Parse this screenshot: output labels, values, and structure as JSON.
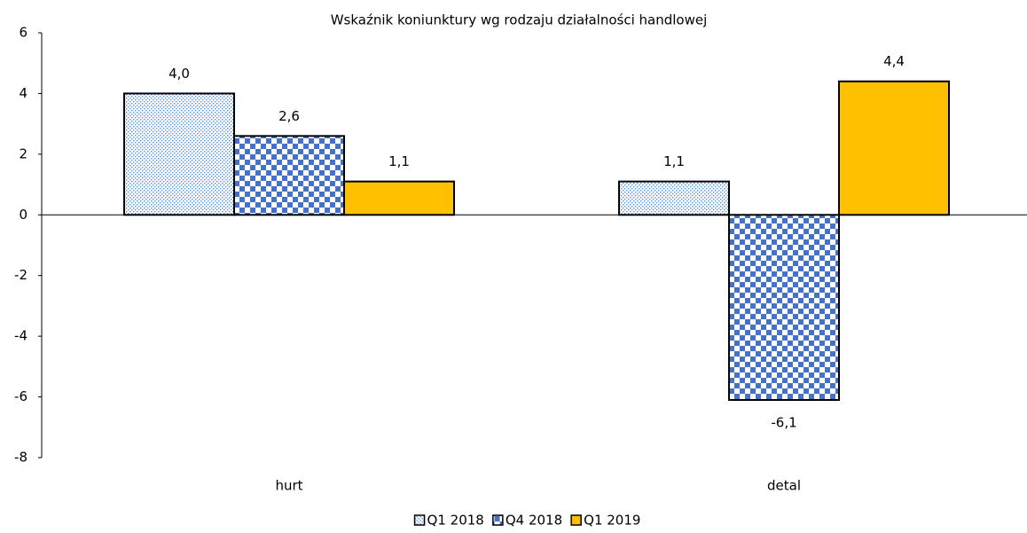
{
  "chart_data": {
    "type": "bar",
    "title": "Wskaźnik koniunktury wg rodzaju działalności handlowej",
    "categories": [
      "hurt",
      "detal"
    ],
    "series": [
      {
        "name": "Q1 2018",
        "color": "#4f8fd6",
        "pattern": "dots",
        "values": [
          4.0,
          1.1
        ],
        "value_labels": [
          "4,0",
          "1,1"
        ]
      },
      {
        "name": "Q4 2018",
        "color": "#4472c4",
        "pattern": "checker",
        "values": [
          2.6,
          -6.1
        ],
        "value_labels": [
          "2,6",
          "-6,1"
        ]
      },
      {
        "name": "Q1 2019",
        "color": "#ffc000",
        "pattern": "solid",
        "values": [
          1.1,
          4.4
        ],
        "value_labels": [
          "1,1",
          "4,4"
        ]
      }
    ],
    "ylim": [
      -8,
      6
    ],
    "yticks": [
      -8,
      -6,
      -4,
      -2,
      0,
      2,
      4,
      6
    ],
    "grid": false,
    "legend": "bottom"
  }
}
